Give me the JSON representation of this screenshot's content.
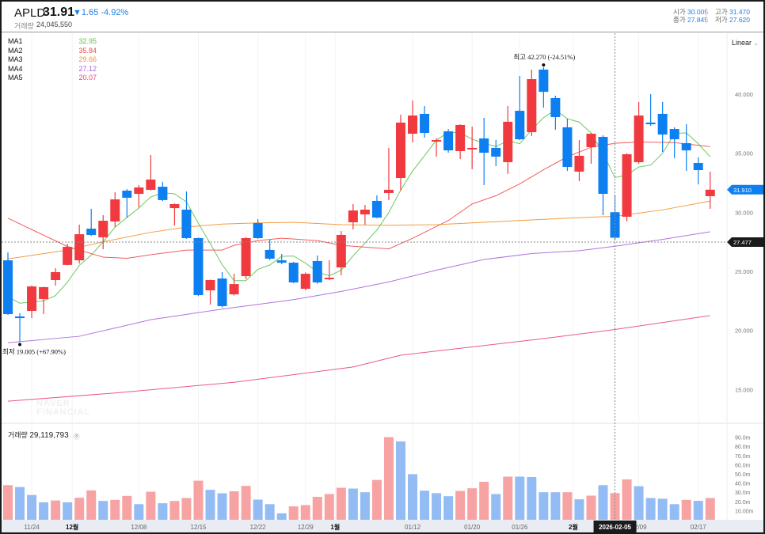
{
  "header": {
    "symbol": "APLD",
    "price": "31.91",
    "change": "▼1.65",
    "change_pct": "-4.92%",
    "volume_label": "거래량",
    "volume": "24,045,550",
    "open_label": "시가",
    "open": "30.005",
    "high_label": "고가",
    "high": "31.470",
    "close_label": "종가",
    "close": "27.845",
    "low_label": "저가",
    "low": "27.620"
  },
  "scale_mode": "Linear",
  "legend": [
    {
      "name": "MA1",
      "value": "32.95",
      "color": "#5cc24a"
    },
    {
      "name": "MA2",
      "value": "35.84",
      "color": "#ef4b4b"
    },
    {
      "name": "MA3",
      "value": "29.66",
      "color": "#f3902c"
    },
    {
      "name": "MA4",
      "value": "27.12",
      "color": "#a865db"
    },
    {
      "name": "MA5",
      "value": "20.07",
      "color": "#e8467e"
    }
  ],
  "volume_legend": {
    "label": "거래량",
    "value": "29,119,793",
    "close": "×"
  },
  "watermark": "NAVER FINANCIAL",
  "annotations": {
    "high": "최고  42.270 (-24.51%)",
    "low": "최저  19.005 (+67.90%)"
  },
  "tags": {
    "current": "31.910",
    "crosshair": "27.477",
    "crosshair_date": "2026-02-05"
  },
  "colors": {
    "up": "#f03a3f",
    "down": "#0d7ff0",
    "vol_up": "#f7a3a3",
    "vol_down": "#93bcf5"
  },
  "chart_data": {
    "type": "candlestick",
    "price_ticks": [
      "40.000",
      "35.000",
      "30.000",
      "25.000",
      "20.000",
      "15.000"
    ],
    "price_tick_values": [
      40,
      35,
      30,
      25,
      20,
      15
    ],
    "volume_ticks": [
      "90.0m",
      "80.0m",
      "70.0m",
      "60.0m",
      "50.0m",
      "40.0m",
      "30.0m",
      "20.0m",
      "10.00m"
    ],
    "volume_tick_values": [
      90,
      80,
      70,
      60,
      50,
      40,
      30,
      20,
      10
    ],
    "x_labels": [
      {
        "i": 2,
        "label": "11/24",
        "bold": false
      },
      {
        "i": 5.4,
        "label": "12월",
        "bold": true
      },
      {
        "i": 11,
        "label": "12/08",
        "bold": false
      },
      {
        "i": 16,
        "label": "12/15",
        "bold": false
      },
      {
        "i": 21,
        "label": "12/22",
        "bold": false
      },
      {
        "i": 25,
        "label": "12/29",
        "bold": false
      },
      {
        "i": 27.5,
        "label": "1월",
        "bold": true
      },
      {
        "i": 34,
        "label": "01/12",
        "bold": false
      },
      {
        "i": 39,
        "label": "01/20",
        "bold": false
      },
      {
        "i": 43,
        "label": "01/26",
        "bold": false
      },
      {
        "i": 47.5,
        "label": "2월",
        "bold": true
      },
      {
        "i": 53,
        "label": "02/09",
        "bold": false
      },
      {
        "i": 58,
        "label": "02/17",
        "bold": false
      }
    ],
    "crosshair_index": 51,
    "crosshair_price": 27.477,
    "ohlc": [
      [
        25.93,
        26.6,
        21.3,
        21.38
      ],
      [
        21.18,
        21.45,
        19.005,
        21.04
      ],
      [
        21.65,
        23.8,
        21.04,
        23.72
      ],
      [
        22.65,
        23.7,
        21.38,
        23.66
      ],
      [
        24.26,
        25.26,
        23.79,
        24.93
      ],
      [
        25.54,
        27.34,
        25.5,
        27.07
      ],
      [
        25.93,
        28.95,
        25.66,
        28.14
      ],
      [
        28.61,
        30.29,
        28.0,
        28.08
      ],
      [
        27.88,
        29.75,
        26.87,
        29.28
      ],
      [
        29.22,
        31.69,
        28.75,
        31.09
      ],
      [
        31.83,
        31.96,
        29.55,
        31.23
      ],
      [
        31.56,
        32.3,
        30.42,
        32.1
      ],
      [
        31.9,
        34.84,
        31.85,
        32.77
      ],
      [
        32.16,
        32.57,
        30.95,
        31.03
      ],
      [
        30.35,
        30.75,
        28.88,
        30.69
      ],
      [
        30.22,
        31.76,
        27.75,
        27.81
      ],
      [
        27.81,
        27.85,
        22.9,
        22.99
      ],
      [
        23.39,
        24.3,
        22.18,
        24.26
      ],
      [
        24.39,
        24.93,
        21.95,
        22.05
      ],
      [
        23.05,
        24.79,
        22.95,
        23.92
      ],
      [
        24.59,
        27.9,
        24.33,
        27.81
      ],
      [
        29.08,
        29.42,
        27.75,
        27.81
      ],
      [
        26.81,
        27.68,
        25.95,
        26.07
      ],
      [
        25.93,
        26.47,
        25.6,
        25.73
      ],
      [
        25.73,
        25.8,
        24.0,
        24.06
      ],
      [
        23.52,
        24.9,
        23.4,
        24.79
      ],
      [
        25.87,
        26.34,
        23.95,
        24.06
      ],
      [
        24.33,
        25.93,
        24.25,
        24.46
      ],
      [
        25.33,
        28.41,
        24.66,
        28.08
      ],
      [
        29.15,
        30.69,
        28.55,
        30.15
      ],
      [
        29.82,
        30.62,
        28.95,
        30.22
      ],
      [
        30.96,
        31.43,
        29.5,
        29.55
      ],
      [
        31.63,
        35.45,
        31.03,
        31.9
      ],
      [
        32.9,
        38.26,
        31.83,
        37.59
      ],
      [
        36.65,
        39.46,
        35.91,
        38.19
      ],
      [
        38.33,
        39.0,
        36.32,
        36.72
      ],
      [
        35.98,
        36.25,
        34.71,
        36.12
      ],
      [
        36.85,
        37.05,
        35.04,
        35.24
      ],
      [
        35.18,
        37.45,
        34.51,
        37.39
      ],
      [
        35.4,
        37.25,
        33.64,
        35.45
      ],
      [
        36.25,
        37.99,
        32.3,
        35.04
      ],
      [
        35.45,
        36.12,
        33.9,
        34.71
      ],
      [
        34.24,
        39.0,
        33.24,
        37.66
      ],
      [
        38.59,
        41.54,
        36.1,
        36.18
      ],
      [
        36.78,
        42.08,
        36.45,
        41.27
      ],
      [
        42.08,
        42.27,
        38.86,
        40.2
      ],
      [
        39.67,
        39.87,
        36.99,
        38.06
      ],
      [
        37.19,
        37.92,
        33.5,
        33.84
      ],
      [
        33.44,
        36.12,
        32.63,
        34.78
      ],
      [
        35.51,
        36.7,
        34.11,
        36.65
      ],
      [
        36.38,
        36.52,
        29.75,
        31.56
      ],
      [
        30.005,
        31.47,
        27.62,
        27.845
      ],
      [
        29.62,
        35.0,
        29.22,
        34.91
      ],
      [
        34.24,
        39.33,
        34.11,
        38.19
      ],
      [
        37.59,
        40.0,
        37.32,
        37.45
      ],
      [
        38.33,
        39.33,
        35.11,
        36.58
      ],
      [
        37.05,
        37.19,
        34.57,
        36.18
      ],
      [
        35.85,
        37.45,
        33.5,
        35.24
      ],
      [
        34.17,
        34.64,
        32.36,
        33.57
      ],
      [
        31.36,
        33.44,
        30.29,
        31.91
      ]
    ],
    "volume_m": [
      37.7,
      35.7,
      27,
      19,
      21,
      19,
      24,
      32,
      20.5,
      21.7,
      26,
      17,
      30.5,
      18,
      20.5,
      23.7,
      42.6,
      32.6,
      28.9,
      31,
      36.9,
      22,
      17,
      7,
      14.6,
      16,
      25,
      28,
      34.9,
      34,
      30,
      43.4,
      90,
      85.4,
      49.7,
      31.7,
      29,
      25.7,
      31.4,
      34.3,
      41.4,
      28,
      47,
      47,
      46.6,
      30,
      30,
      30,
      22.3,
      26.3,
      37.7,
      29.12,
      44,
      36.6,
      23.7,
      22.9,
      17,
      21.7,
      20.6,
      23.7
    ],
    "volume_dir": "uddduduuduududuuudduuddduuuuudduuddddduuududdddududuudddduduu",
    "ma": [
      {
        "name": "MA1",
        "period": 5,
        "seed": [
          22.85,
          22.3,
          22.4,
          22.5
        ]
      },
      {
        "name": "MA2",
        "points": [
          [
            0,
            29.5
          ],
          [
            5,
            27.1
          ],
          [
            8,
            26.2
          ],
          [
            10,
            26.1
          ],
          [
            12,
            26.4
          ],
          [
            15,
            26.8
          ],
          [
            18,
            26.8
          ],
          [
            19,
            27.2
          ],
          [
            21,
            27.6
          ],
          [
            23,
            27.8
          ],
          [
            26,
            27.6
          ],
          [
            28,
            27.2
          ],
          [
            32,
            26.9
          ],
          [
            34,
            27.8
          ],
          [
            37,
            29.3
          ],
          [
            39,
            30.7
          ],
          [
            41,
            31.4
          ],
          [
            43,
            32.4
          ],
          [
            45,
            33.6
          ],
          [
            47,
            34.7
          ],
          [
            49,
            35.5
          ],
          [
            51,
            35.84
          ],
          [
            53,
            35.95
          ],
          [
            56,
            35.9
          ],
          [
            59,
            35.55
          ]
        ]
      },
      {
        "name": "MA3",
        "points": [
          [
            0,
            26.05
          ],
          [
            5,
            26.8
          ],
          [
            8,
            27.5
          ],
          [
            12,
            28.3
          ],
          [
            15,
            28.75
          ],
          [
            18,
            29.0
          ],
          [
            21,
            29.1
          ],
          [
            24,
            29.15
          ],
          [
            28,
            28.95
          ],
          [
            32,
            28.9
          ],
          [
            36,
            28.95
          ],
          [
            40,
            29.15
          ],
          [
            43,
            29.3
          ],
          [
            47,
            29.5
          ],
          [
            51,
            29.66
          ],
          [
            55,
            30.2
          ],
          [
            59,
            30.95
          ]
        ]
      },
      {
        "name": "MA4",
        "points": [
          [
            0,
            18.95
          ],
          [
            6,
            19.5
          ],
          [
            12,
            20.9
          ],
          [
            18,
            21.8
          ],
          [
            24,
            22.6
          ],
          [
            28,
            23.3
          ],
          [
            32,
            24.1
          ],
          [
            36,
            25.1
          ],
          [
            40,
            26.0
          ],
          [
            44,
            26.5
          ],
          [
            48,
            26.75
          ],
          [
            51,
            27.12
          ],
          [
            55,
            27.7
          ],
          [
            59,
            28.35
          ]
        ]
      },
      {
        "name": "MA5",
        "points": [
          [
            0,
            14.0
          ],
          [
            9,
            14.7
          ],
          [
            19,
            15.6
          ],
          [
            29,
            16.9
          ],
          [
            33,
            17.9
          ],
          [
            39,
            18.6
          ],
          [
            45,
            19.3
          ],
          [
            51,
            20.07
          ],
          [
            59,
            21.25
          ]
        ]
      }
    ]
  }
}
